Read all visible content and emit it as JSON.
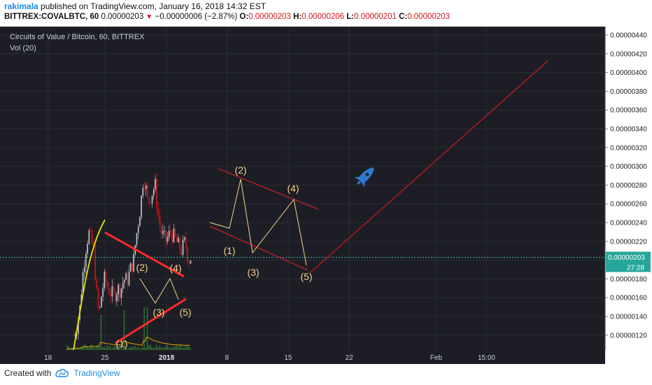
{
  "header": {
    "user": "rakimala",
    "published": "published on TradingView.com, January 16, 2018 14:32 EST",
    "symbol": "BITTREX:COVALBTC, 60",
    "last": "0.00000203",
    "change_arrow": "▼",
    "change": "−0.00000006 (−2.87%)",
    "o_label": "O:",
    "o_value": "0.00000203",
    "h_label": "H:",
    "h_value": "0.00000206",
    "l_label": "L:",
    "l_value": "0.00000201",
    "c_label": "C:",
    "c_value": "0.00000203"
  },
  "chart_data": {
    "type": "candlestick",
    "title": "Circuits of Value / Bitcoin, 60, BITTREX",
    "indicator": "Vol (20)",
    "price_axis": {
      "ticks": [
        "0.00000440",
        "0.00000420",
        "0.00000400",
        "0.00000380",
        "0.00000360",
        "0.00000340",
        "0.00000320",
        "0.00000300",
        "0.00000280",
        "0.00000260",
        "0.00000240",
        "0.00000220",
        "0.00000200",
        "0.00000180",
        "0.00000160",
        "0.00000140",
        "0.00000120"
      ],
      "current_price": "0.00000203",
      "countdown": "27:28"
    },
    "time_axis": [
      {
        "label": "18",
        "bold": false
      },
      {
        "label": "25",
        "bold": false
      },
      {
        "label": "2018",
        "bold": true
      },
      {
        "label": "8",
        "bold": false
      },
      {
        "label": "15",
        "bold": false
      },
      {
        "label": "22",
        "bold": false
      },
      {
        "label": "Feb",
        "bold": false
      },
      {
        "label": "15:00",
        "bold": false
      }
    ],
    "price_path": [
      [
        0.113,
        1.2e-06
      ],
      [
        0.1182,
        1.3e-06
      ],
      [
        0.1227,
        1.5e-06
      ],
      [
        0.1262,
        1.8e-06
      ],
      [
        0.131,
        2.1e-06
      ],
      [
        0.136,
        2.3e-06
      ],
      [
        0.14,
        2.2e-06
      ],
      [
        0.144,
        2.1e-06
      ],
      [
        0.1475,
        1.7e-06
      ],
      [
        0.15,
        1.5e-06
      ],
      [
        0.1525,
        1.43e-06
      ],
      [
        0.156,
        1.65e-06
      ],
      [
        0.16,
        1.8e-06
      ],
      [
        0.166,
        1.7e-06
      ],
      [
        0.17,
        1.65e-06
      ],
      [
        0.175,
        1.62e-06
      ],
      [
        0.18,
        1.7e-06
      ],
      [
        0.185,
        1.68e-06
      ],
      [
        0.19,
        1.8e-06
      ],
      [
        0.195,
        1.78e-06
      ],
      [
        0.2,
        1.9e-06
      ],
      [
        0.205,
        2e-06
      ],
      [
        0.208,
        2.2e-06
      ],
      [
        0.212,
        2.4e-06
      ],
      [
        0.216,
        2.6e-06
      ],
      [
        0.22,
        2.9e-06
      ],
      [
        0.223,
        2.8e-06
      ],
      [
        0.227,
        2.6e-06
      ],
      [
        0.232,
        2.7e-06
      ],
      [
        0.238,
        2.8e-06
      ],
      [
        0.242,
        2.5e-06
      ],
      [
        0.247,
        2.3e-06
      ],
      [
        0.254,
        2.2e-06
      ],
      [
        0.262,
        2.3e-06
      ],
      [
        0.27,
        2.2e-06
      ],
      [
        0.278,
        2.1e-06
      ],
      [
        0.284,
        2.2e-06
      ],
      [
        0.289,
        2e-06
      ],
      [
        0.293,
        2.03e-06
      ]
    ],
    "annotations": [
      {
        "label": "(2)",
        "group": "triangle"
      },
      {
        "label": "(4)",
        "group": "triangle"
      },
      {
        "label": "(3)",
        "group": "triangle"
      },
      {
        "label": "(5)",
        "group": "triangle"
      },
      {
        "label": "(1)",
        "group": "triangle"
      },
      {
        "label": "(2)",
        "group": "channel"
      },
      {
        "label": "(4)",
        "group": "channel"
      },
      {
        "label": "(1)",
        "group": "channel"
      },
      {
        "label": "(3)",
        "group": "channel"
      },
      {
        "label": "(5)",
        "group": "channel"
      }
    ],
    "projection": {
      "from_price": 1.9e-06,
      "to_price": 4.15e-06,
      "color": "#d0161b"
    },
    "colors": {
      "background": "#1d1e25",
      "up": "#c8ccd1",
      "down": "#d0161b",
      "volume": "#2f6b34",
      "ma": "#e0a100",
      "wave": "#f2d38a",
      "trend": "#ff2a2a",
      "channel": "#c61a2a",
      "projection": "#d0161b",
      "rocket": "#2f7ad0"
    }
  },
  "footer": {
    "created_with": "Created with",
    "brand": "TradingView"
  }
}
